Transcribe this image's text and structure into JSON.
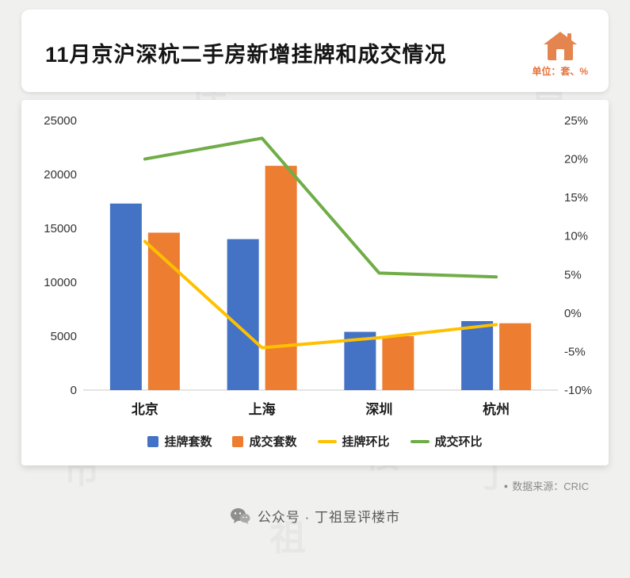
{
  "header": {
    "title": "11月京沪深杭二手房新增挂牌和成交情况",
    "unit_label": "单位：套、%"
  },
  "chart_data": {
    "type": "combo-bar-line",
    "categories": [
      "北京",
      "上海",
      "深圳",
      "杭州"
    ],
    "bar_series": [
      {
        "name": "挂牌套数",
        "color": "#4472c4",
        "values": [
          17300,
          14000,
          5400,
          6400
        ]
      },
      {
        "name": "成交套数",
        "color": "#ed7d31",
        "values": [
          14600,
          20800,
          5000,
          6200
        ]
      }
    ],
    "line_series": [
      {
        "name": "挂牌环比",
        "color": "#ffc000",
        "values": [
          9.3,
          -4.5,
          -3.2,
          -1.5
        ]
      },
      {
        "name": "成交环比",
        "color": "#70ad47",
        "values": [
          20,
          22.7,
          5.2,
          4.7
        ]
      }
    ],
    "left_axis": {
      "min": 0,
      "max": 25000,
      "step": 5000,
      "ticks": [
        "0",
        "5000",
        "10000",
        "15000",
        "20000",
        "25000"
      ]
    },
    "right_axis": {
      "min": -10,
      "max": 25,
      "step": 5,
      "ticks": [
        "-10%",
        "-5%",
        "0%",
        "5%",
        "10%",
        "15%",
        "20%",
        "25%"
      ]
    },
    "legend": [
      "挂牌套数",
      "成交套数",
      "挂牌环比",
      "成交环比"
    ],
    "grid": false,
    "legend_position": "bottom"
  },
  "watermark": "丁祖昱评楼市",
  "footer": {
    "source_bullet": "●",
    "source": "数据来源：CRIC",
    "account": "公众号 · 丁祖昱评楼市"
  },
  "colors": {
    "accent_orange": "#e4743d",
    "bar_blue": "#4472c4",
    "bar_orange": "#ed7d31",
    "line_yellow": "#ffc000",
    "line_green": "#70ad47"
  }
}
